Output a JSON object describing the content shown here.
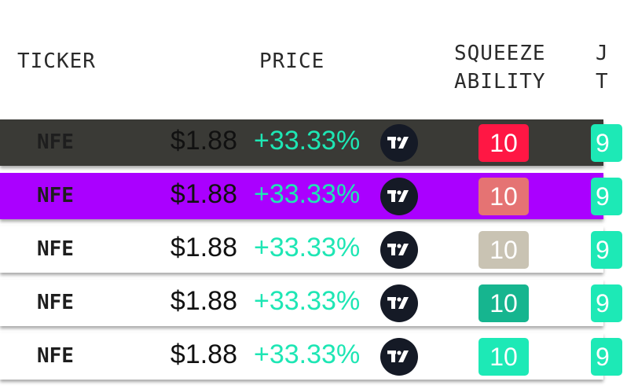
{
  "headers": {
    "ticker": "TICKER",
    "price": "PRICE",
    "squeeze": "SQUEEZE\nABILITY",
    "partial": "J\nT"
  },
  "rows": [
    {
      "ticker": "NFE",
      "price": "$1.88",
      "change": "+33.33%",
      "squeeze": "10",
      "partial": "9",
      "row_bg": "#3a3a36",
      "badge_bg": "#ff1744",
      "partial_bg": "#1de9b6",
      "icon": "tradingview-icon"
    },
    {
      "ticker": "NFE",
      "price": "$1.88",
      "change": "+33.33%",
      "squeeze": "10",
      "partial": "9",
      "row_bg": "#aa00ff",
      "badge_bg": "#e57373",
      "partial_bg": "#1de9b6",
      "icon": "tradingview-icon"
    },
    {
      "ticker": "NFE",
      "price": "$1.88",
      "change": "+33.33%",
      "squeeze": "10",
      "partial": "9",
      "row_bg": "#ffffff",
      "badge_bg": "#c9c3b3",
      "partial_bg": "#1de9b6",
      "icon": "tradingview-icon"
    },
    {
      "ticker": "NFE",
      "price": "$1.88",
      "change": "+33.33%",
      "squeeze": "10",
      "partial": "9",
      "row_bg": "#ffffff",
      "badge_bg": "#16b58f",
      "partial_bg": "#1de9b6",
      "icon": "tradingview-icon"
    },
    {
      "ticker": "NFE",
      "price": "$1.88",
      "change": "+33.33%",
      "squeeze": "10",
      "partial": "9",
      "row_bg": "#ffffff",
      "badge_bg": "#1de9b6",
      "partial_bg": "#1de9b6",
      "icon": "tradingview-icon"
    }
  ]
}
